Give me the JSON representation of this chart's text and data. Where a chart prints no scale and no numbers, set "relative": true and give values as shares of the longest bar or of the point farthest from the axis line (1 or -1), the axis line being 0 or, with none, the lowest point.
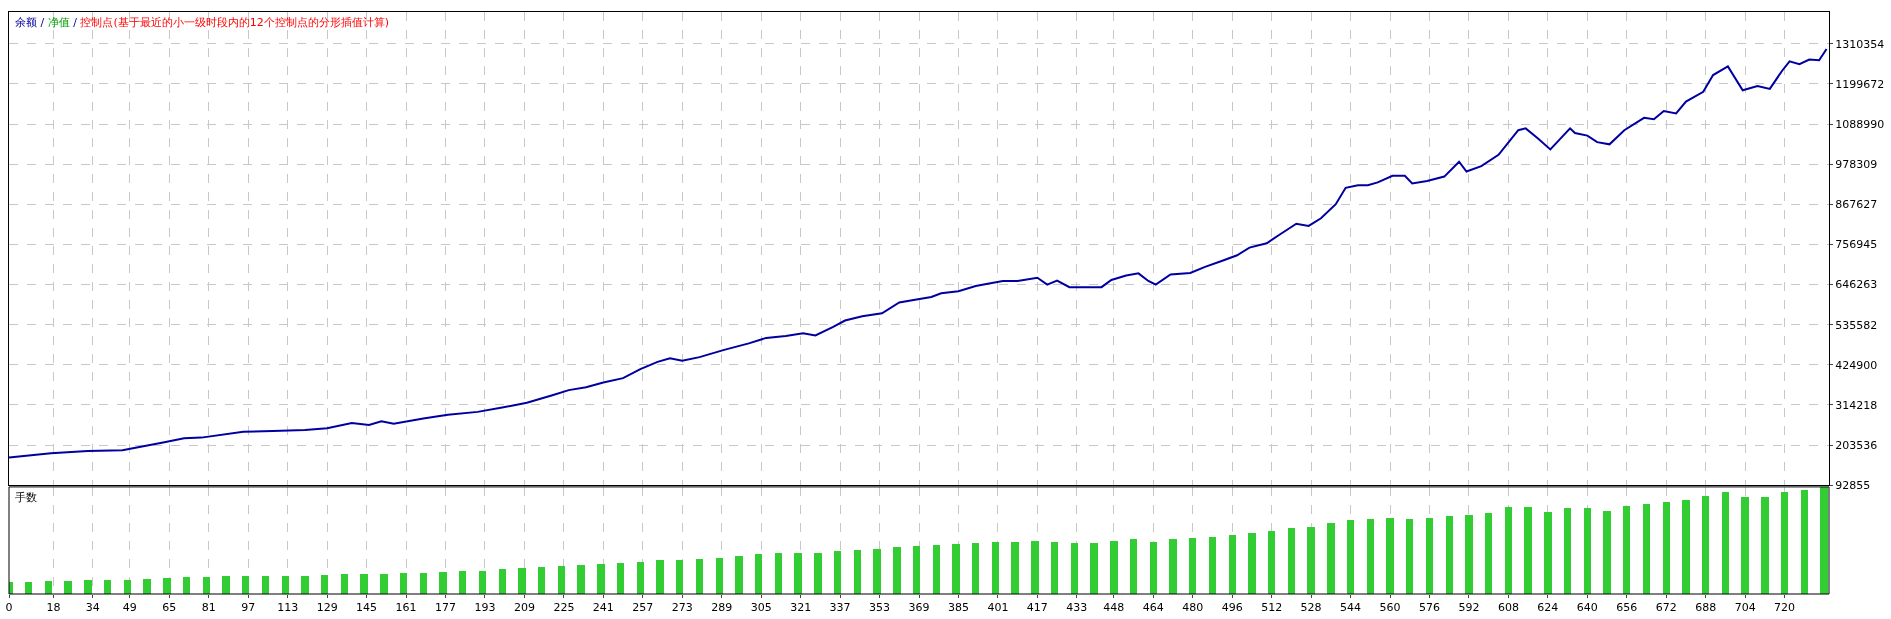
{
  "chart_data": [
    {
      "type": "line",
      "xlim": [
        0,
        738
      ],
      "ylim": [
        92855,
        1398000
      ],
      "xticks": [
        0,
        18,
        34,
        49,
        65,
        81,
        97,
        113,
        129,
        145,
        161,
        177,
        193,
        209,
        225,
        241,
        257,
        273,
        289,
        305,
        321,
        337,
        353,
        369,
        385,
        401,
        417,
        433,
        448,
        464,
        480,
        496,
        512,
        528,
        544,
        560,
        576,
        592,
        608,
        624,
        640,
        656,
        672,
        688,
        704,
        720
      ],
      "yticks": [
        92855,
        203536,
        314218,
        424900,
        535582,
        646263,
        756945,
        867627,
        978309,
        1088990,
        1199672,
        1310354
      ],
      "tick_labels": "y",
      "grid": true,
      "legend": "top left",
      "annotations": [
        "/",
        "/"
      ],
      "marker": "none",
      "line_style": "solid",
      "series": [
        {
          "name": "余额",
          "color": "#0000a0",
          "x": [
            0,
            17,
            32,
            46,
            63,
            71,
            78,
            95,
            107,
            120,
            129,
            139,
            146,
            151,
            156,
            168,
            178,
            190,
            200,
            210,
            220,
            227,
            234,
            241,
            249,
            256,
            263,
            268,
            273,
            280,
            290,
            300,
            307,
            315,
            322,
            327,
            334,
            339,
            346,
            354,
            361,
            368,
            374,
            378,
            385,
            392,
            398,
            403,
            409,
            417,
            421,
            425,
            430,
            436,
            443,
            447,
            453,
            458,
            462,
            465,
            471,
            479,
            485,
            492,
            498,
            503,
            510,
            515,
            522,
            527,
            532,
            538,
            542,
            547,
            551,
            555,
            561,
            566,
            569,
            575,
            582,
            588,
            591,
            597,
            604,
            612,
            615,
            620,
            625,
            633,
            635,
            640,
            644,
            649,
            655,
            663,
            667,
            671,
            676,
            680,
            687,
            691,
            697,
            703,
            709,
            714,
            719,
            722,
            726,
            730,
            734,
            737
          ],
          "values": [
            169000,
            181000,
            187000,
            189000,
            211000,
            222000,
            224000,
            240000,
            242000,
            245000,
            250000,
            264000,
            259000,
            269000,
            262000,
            277000,
            287000,
            295000,
            307000,
            320000,
            340000,
            355000,
            363000,
            376000,
            388000,
            413000,
            433000,
            443000,
            436000,
            446000,
            466000,
            484000,
            499000,
            504000,
            512000,
            506000,
            529000,
            547000,
            559000,
            567000,
            597000,
            605000,
            612000,
            622000,
            628000,
            642000,
            650000,
            656000,
            656000,
            665000,
            646000,
            657000,
            639000,
            639000,
            639000,
            659000,
            671000,
            677000,
            656000,
            646000,
            674000,
            678000,
            695000,
            712000,
            727000,
            748000,
            760000,
            783000,
            814000,
            808000,
            829000,
            868000,
            913000,
            920000,
            920000,
            928000,
            946000,
            946000,
            925000,
            932000,
            944000,
            985000,
            958000,
            973000,
            1004000,
            1072000,
            1077000,
            1049000,
            1019000,
            1077000,
            1064000,
            1057000,
            1039000,
            1033000,
            1072000,
            1106000,
            1102000,
            1125000,
            1118000,
            1151000,
            1178000,
            1224000,
            1248000,
            1182000,
            1194000,
            1186000,
            1236000,
            1262000,
            1254000,
            1267000,
            1265000,
            1296000
          ]
        },
        {
          "name": "净值",
          "color": "#00a000",
          "values": [
            null
          ]
        },
        {
          "name": "控制点(基于最近的小一级时段内的12个控制点的分形插值计算)",
          "color": "#ff0000",
          "values": [
            null
          ]
        }
      ]
    },
    {
      "type": "bar",
      "title": "手数",
      "relative": true,
      "color": "#32cd32",
      "xlim": [
        0,
        738
      ],
      "tick_labels": "x",
      "grid": "x",
      "xticks": [
        0,
        18,
        34,
        49,
        65,
        81,
        97,
        113,
        129,
        145,
        161,
        177,
        193,
        209,
        225,
        241,
        257,
        273,
        289,
        305,
        321,
        337,
        353,
        369,
        385,
        401,
        417,
        433,
        448,
        464,
        480,
        496,
        512,
        528,
        544,
        560,
        576,
        592,
        608,
        624,
        640,
        656,
        672,
        688,
        704,
        720
      ],
      "x": [
        0,
        8,
        16,
        24,
        32,
        40,
        48,
        56,
        64,
        72,
        80,
        88,
        96,
        104,
        112,
        120,
        128,
        136,
        144,
        152,
        160,
        168,
        176,
        184,
        192,
        200,
        208,
        216,
        224,
        232,
        240,
        248,
        256,
        264,
        272,
        280,
        288,
        296,
        304,
        312,
        320,
        328,
        336,
        344,
        352,
        360,
        368,
        376,
        384,
        392,
        400,
        408,
        416,
        424,
        432,
        440,
        448,
        456,
        464,
        472,
        480,
        488,
        496,
        504,
        512,
        520,
        528,
        536,
        544,
        552,
        560,
        568,
        576,
        584,
        592,
        600,
        608,
        616,
        624,
        632,
        640,
        648,
        656,
        664,
        672,
        680,
        688,
        696,
        704,
        712,
        720,
        728,
        736
      ],
      "values": [
        0.11,
        0.11,
        0.12,
        0.12,
        0.13,
        0.13,
        0.13,
        0.14,
        0.15,
        0.16,
        0.16,
        0.17,
        0.17,
        0.17,
        0.17,
        0.17,
        0.18,
        0.19,
        0.19,
        0.19,
        0.2,
        0.2,
        0.21,
        0.22,
        0.22,
        0.23,
        0.24,
        0.25,
        0.26,
        0.27,
        0.28,
        0.29,
        0.3,
        0.32,
        0.32,
        0.33,
        0.34,
        0.36,
        0.37,
        0.38,
        0.38,
        0.38,
        0.4,
        0.41,
        0.42,
        0.44,
        0.45,
        0.46,
        0.47,
        0.48,
        0.49,
        0.49,
        0.5,
        0.49,
        0.48,
        0.48,
        0.5,
        0.51,
        0.49,
        0.51,
        0.52,
        0.53,
        0.55,
        0.57,
        0.59,
        0.62,
        0.63,
        0.66,
        0.69,
        0.7,
        0.71,
        0.7,
        0.71,
        0.73,
        0.74,
        0.76,
        0.81,
        0.81,
        0.77,
        0.8,
        0.8,
        0.78,
        0.82,
        0.84,
        0.86,
        0.88,
        0.92,
        0.95,
        0.91,
        0.91,
        0.95,
        0.97,
        1.0
      ]
    }
  ]
}
